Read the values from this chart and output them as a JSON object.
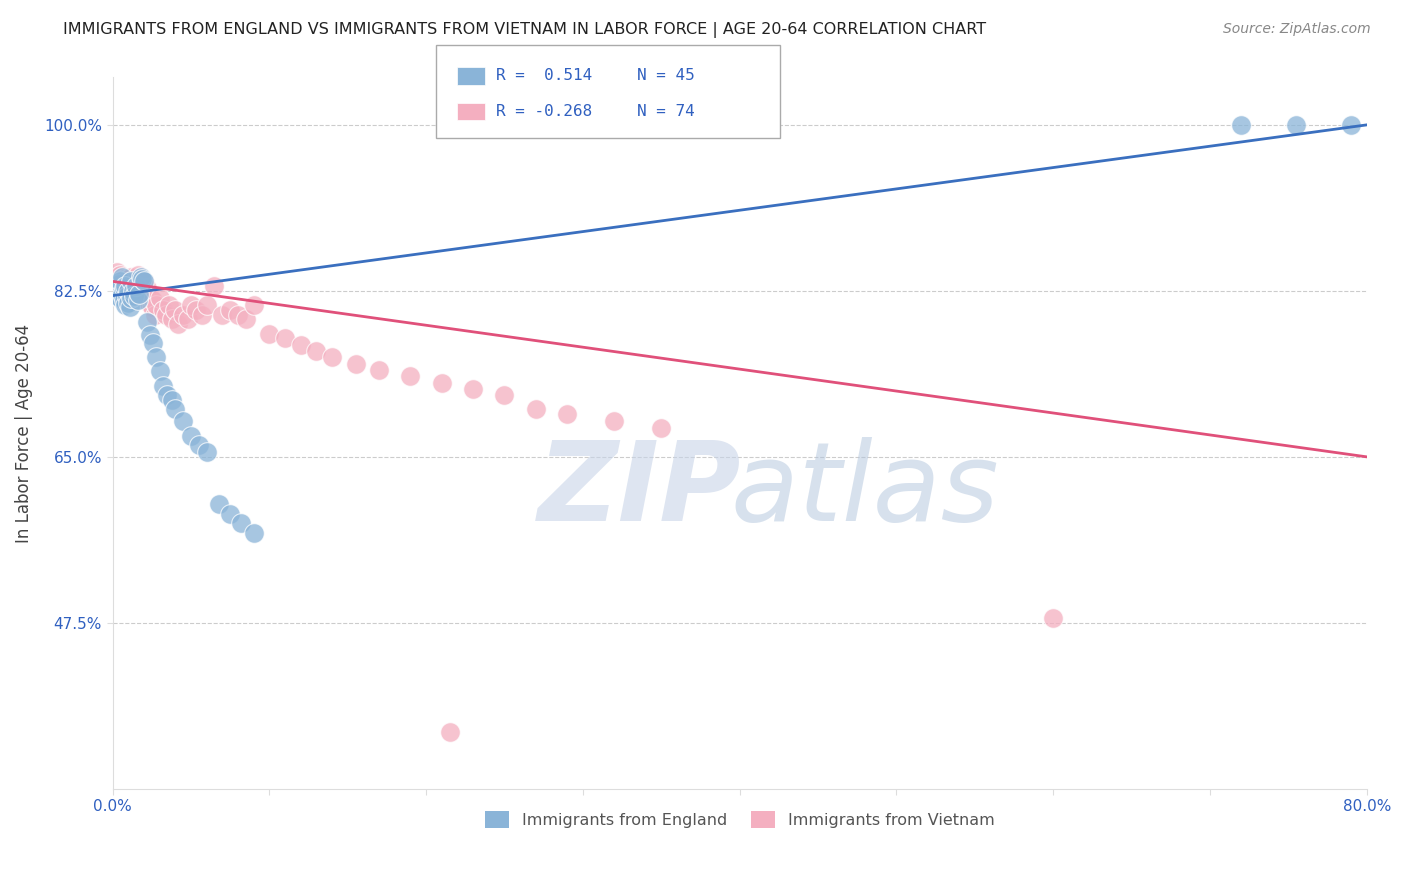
{
  "title": "IMMIGRANTS FROM ENGLAND VS IMMIGRANTS FROM VIETNAM IN LABOR FORCE | AGE 20-64 CORRELATION CHART",
  "source": "Source: ZipAtlas.com",
  "ylabel": "In Labor Force | Age 20-64",
  "xlim": [
    0.0,
    0.8
  ],
  "ylim": [
    0.3,
    1.05
  ],
  "xticks": [
    0.0,
    0.1,
    0.2,
    0.3,
    0.4,
    0.5,
    0.6,
    0.7,
    0.8
  ],
  "xticklabels": [
    "0.0%",
    "",
    "",
    "",
    "",
    "",
    "",
    "",
    "80.0%"
  ],
  "yticks": [
    0.475,
    0.65,
    0.825,
    1.0
  ],
  "yticklabels": [
    "47.5%",
    "65.0%",
    "82.5%",
    "100.0%"
  ],
  "england_R": 0.514,
  "england_N": 45,
  "vietnam_R": -0.268,
  "vietnam_N": 74,
  "england_color": "#8ab4d8",
  "vietnam_color": "#f4afc0",
  "england_line_color": "#3a6fbf",
  "vietnam_line_color": "#e0507a",
  "legend_label_england": "Immigrants from England",
  "legend_label_vietnam": "Immigrants from Vietnam",
  "background_color": "#ffffff",
  "grid_color": "#cccccc",
  "england_x": [
    0.002,
    0.003,
    0.004,
    0.005,
    0.005,
    0.006,
    0.006,
    0.007,
    0.007,
    0.008,
    0.008,
    0.009,
    0.01,
    0.01,
    0.011,
    0.012,
    0.012,
    0.013,
    0.014,
    0.015,
    0.016,
    0.017,
    0.018,
    0.019,
    0.02,
    0.022,
    0.024,
    0.026,
    0.028,
    0.03,
    0.032,
    0.035,
    0.038,
    0.04,
    0.045,
    0.05,
    0.055,
    0.06,
    0.068,
    0.075,
    0.082,
    0.09,
    0.72,
    0.755,
    0.79
  ],
  "england_y": [
    0.82,
    0.825,
    0.832,
    0.818,
    0.835,
    0.822,
    0.84,
    0.815,
    0.828,
    0.81,
    0.83,
    0.82,
    0.825,
    0.812,
    0.808,
    0.835,
    0.818,
    0.825,
    0.82,
    0.83,
    0.815,
    0.822,
    0.84,
    0.838,
    0.835,
    0.792,
    0.778,
    0.77,
    0.755,
    0.74,
    0.725,
    0.715,
    0.71,
    0.7,
    0.688,
    0.672,
    0.662,
    0.655,
    0.6,
    0.59,
    0.58,
    0.57,
    1.0,
    1.0,
    1.0
  ],
  "vietnam_x": [
    0.002,
    0.003,
    0.003,
    0.004,
    0.004,
    0.005,
    0.005,
    0.006,
    0.006,
    0.007,
    0.007,
    0.008,
    0.008,
    0.009,
    0.009,
    0.01,
    0.01,
    0.011,
    0.011,
    0.012,
    0.012,
    0.013,
    0.013,
    0.014,
    0.015,
    0.016,
    0.017,
    0.018,
    0.019,
    0.02,
    0.021,
    0.022,
    0.023,
    0.024,
    0.025,
    0.026,
    0.027,
    0.028,
    0.03,
    0.032,
    0.034,
    0.036,
    0.038,
    0.04,
    0.042,
    0.045,
    0.048,
    0.05,
    0.053,
    0.057,
    0.06,
    0.065,
    0.07,
    0.075,
    0.08,
    0.085,
    0.09,
    0.1,
    0.11,
    0.12,
    0.13,
    0.14,
    0.155,
    0.17,
    0.19,
    0.21,
    0.23,
    0.25,
    0.27,
    0.29,
    0.32,
    0.35,
    0.6,
    0.215
  ],
  "vietnam_y": [
    0.84,
    0.845,
    0.83,
    0.838,
    0.825,
    0.842,
    0.828,
    0.835,
    0.82,
    0.838,
    0.825,
    0.83,
    0.818,
    0.832,
    0.822,
    0.838,
    0.828,
    0.835,
    0.82,
    0.825,
    0.84,
    0.832,
    0.818,
    0.828,
    0.835,
    0.842,
    0.83,
    0.838,
    0.825,
    0.835,
    0.82,
    0.828,
    0.812,
    0.82,
    0.808,
    0.815,
    0.8,
    0.81,
    0.818,
    0.805,
    0.8,
    0.81,
    0.795,
    0.805,
    0.79,
    0.8,
    0.795,
    0.81,
    0.805,
    0.8,
    0.81,
    0.83,
    0.8,
    0.805,
    0.8,
    0.795,
    0.81,
    0.78,
    0.775,
    0.768,
    0.762,
    0.755,
    0.748,
    0.742,
    0.735,
    0.728,
    0.722,
    0.715,
    0.7,
    0.695,
    0.688,
    0.68,
    0.48,
    0.36
  ],
  "eng_line_x0": 0.0,
  "eng_line_y0": 0.82,
  "eng_line_x1": 0.8,
  "eng_line_y1": 1.0,
  "viet_line_x0": 0.0,
  "viet_line_y0": 0.835,
  "viet_line_x1": 0.8,
  "viet_line_y1": 0.65
}
